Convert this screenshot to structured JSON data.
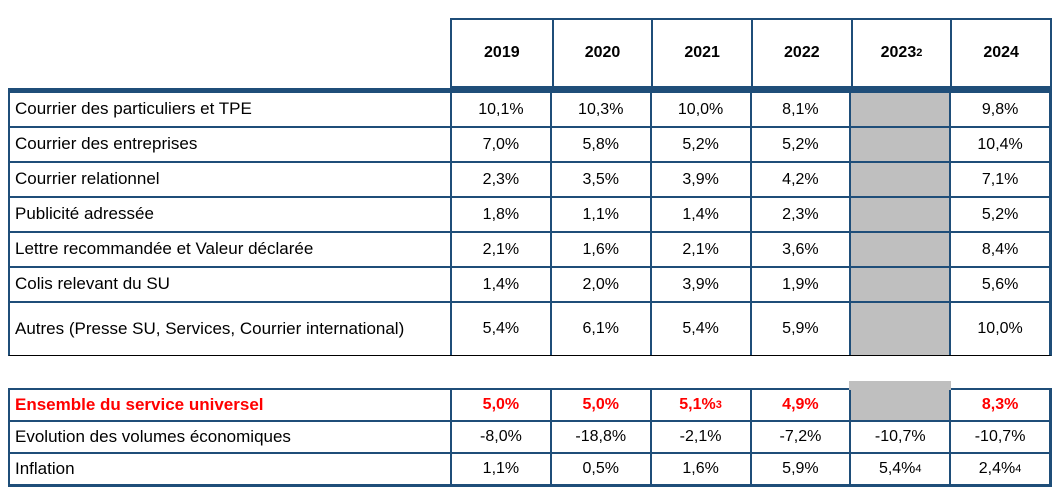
{
  "colors": {
    "border_blue": "#1F4E79",
    "masked_grey": "#BFBFBF",
    "highlight_red": "#FF0000"
  },
  "header": {
    "years": [
      {
        "label": "2019",
        "sup": ""
      },
      {
        "label": "2020",
        "sup": ""
      },
      {
        "label": "2021",
        "sup": ""
      },
      {
        "label": "2022",
        "sup": ""
      },
      {
        "label": "2023",
        "sup": "2"
      },
      {
        "label": "2024",
        "sup": ""
      }
    ]
  },
  "table1": {
    "rows": [
      {
        "label": "Courrier des particuliers et TPE",
        "values": [
          {
            "t": "10,1%",
            "s": ""
          },
          {
            "t": "10,3%",
            "s": ""
          },
          {
            "t": "10,0%",
            "s": ""
          },
          {
            "t": "8,1%",
            "s": ""
          },
          {
            "t": "",
            "s": ""
          },
          {
            "t": "9,8%",
            "s": ""
          }
        ]
      },
      {
        "label": "Courrier des entreprises",
        "values": [
          {
            "t": "7,0%",
            "s": ""
          },
          {
            "t": "5,8%",
            "s": ""
          },
          {
            "t": "5,2%",
            "s": ""
          },
          {
            "t": "5,2%",
            "s": ""
          },
          {
            "t": "",
            "s": ""
          },
          {
            "t": "10,4%",
            "s": ""
          }
        ]
      },
      {
        "label": "Courrier relationnel",
        "values": [
          {
            "t": "2,3%",
            "s": ""
          },
          {
            "t": "3,5%",
            "s": ""
          },
          {
            "t": "3,9%",
            "s": ""
          },
          {
            "t": "4,2%",
            "s": ""
          },
          {
            "t": "",
            "s": ""
          },
          {
            "t": "7,1%",
            "s": ""
          }
        ]
      },
      {
        "label": "Publicité adressée",
        "values": [
          {
            "t": "1,8%",
            "s": ""
          },
          {
            "t": "1,1%",
            "s": ""
          },
          {
            "t": "1,4%",
            "s": ""
          },
          {
            "t": "2,3%",
            "s": ""
          },
          {
            "t": "",
            "s": ""
          },
          {
            "t": "5,2%",
            "s": ""
          }
        ]
      },
      {
        "label": "Lettre recommandée et Valeur déclarée",
        "values": [
          {
            "t": "2,1%",
            "s": ""
          },
          {
            "t": "1,6%",
            "s": ""
          },
          {
            "t": "2,1%",
            "s": ""
          },
          {
            "t": "3,6%",
            "s": ""
          },
          {
            "t": "",
            "s": ""
          },
          {
            "t": "8,4%",
            "s": ""
          }
        ]
      },
      {
        "label": "Colis relevant du SU",
        "values": [
          {
            "t": "1,4%",
            "s": ""
          },
          {
            "t": "2,0%",
            "s": ""
          },
          {
            "t": "3,9%",
            "s": ""
          },
          {
            "t": "1,9%",
            "s": ""
          },
          {
            "t": "",
            "s": ""
          },
          {
            "t": "5,6%",
            "s": ""
          }
        ]
      },
      {
        "label": "Autres (Presse SU, Services, Courrier international)",
        "values": [
          {
            "t": "5,4%",
            "s": ""
          },
          {
            "t": "6,1%",
            "s": ""
          },
          {
            "t": "5,4%",
            "s": ""
          },
          {
            "t": "5,9%",
            "s": ""
          },
          {
            "t": "",
            "s": ""
          },
          {
            "t": "10,0%",
            "s": ""
          }
        ]
      }
    ]
  },
  "table2": {
    "rows": [
      {
        "label": "Ensemble du service universel",
        "values": [
          {
            "t": "5,0%",
            "s": ""
          },
          {
            "t": "5,0%",
            "s": ""
          },
          {
            "t": "5,1%",
            "s": "3"
          },
          {
            "t": "4,9%",
            "s": ""
          },
          {
            "t": "",
            "s": ""
          },
          {
            "t": "8,3%",
            "s": ""
          }
        ]
      },
      {
        "label": "Evolution des volumes économiques",
        "values": [
          {
            "t": "-8,0%",
            "s": ""
          },
          {
            "t": "-18,8%",
            "s": ""
          },
          {
            "t": "-2,1%",
            "s": ""
          },
          {
            "t": "-7,2%",
            "s": ""
          },
          {
            "t": "-10,7%",
            "s": ""
          },
          {
            "t": "-10,7%",
            "s": ""
          }
        ]
      },
      {
        "label": "Inflation",
        "values": [
          {
            "t": "1,1%",
            "s": ""
          },
          {
            "t": "0,5%",
            "s": ""
          },
          {
            "t": "1,6%",
            "s": ""
          },
          {
            "t": "5,9%",
            "s": ""
          },
          {
            "t": "5,4%",
            "s": "4"
          },
          {
            "t": "2,4%",
            "s": "4"
          }
        ]
      }
    ]
  }
}
